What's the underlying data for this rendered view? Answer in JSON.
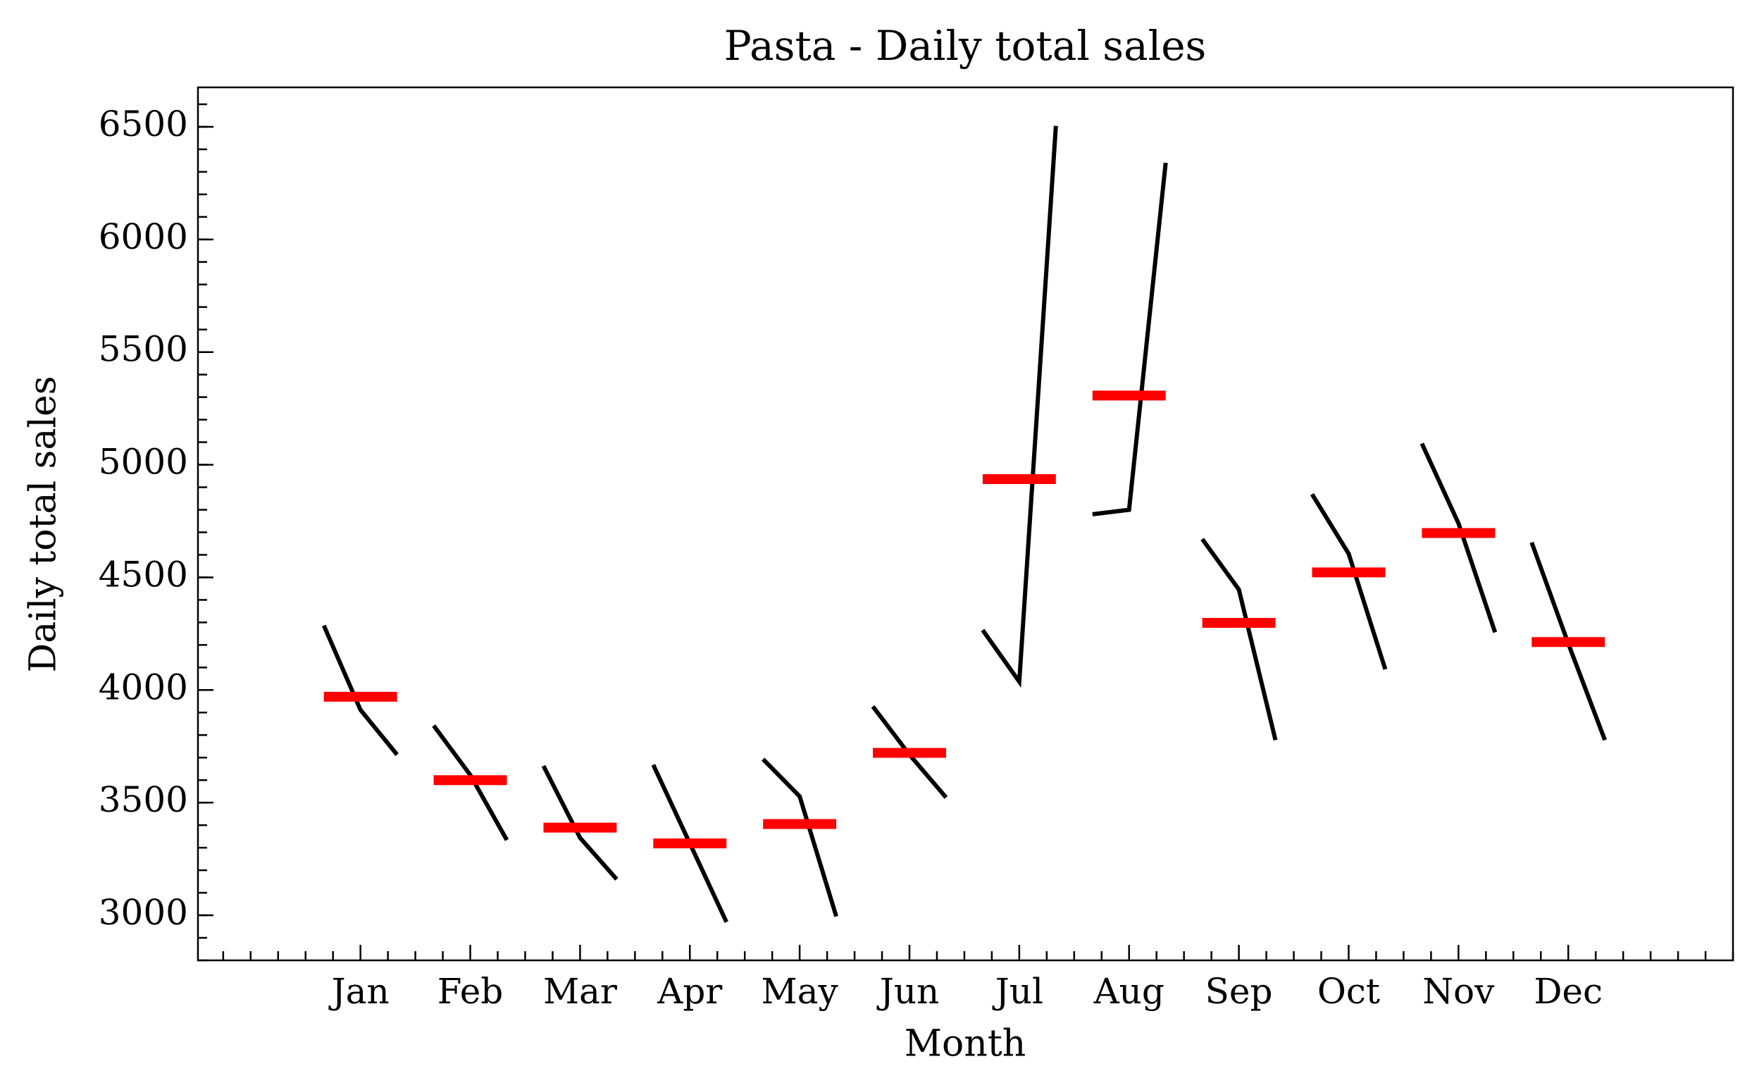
{
  "chart_data": {
    "type": "month_plot",
    "title": "Pasta - Daily total sales",
    "x_label": "Month",
    "y_label": "Daily total sales",
    "categories": [
      "Jan",
      "Feb",
      "Mar",
      "Apr",
      "May",
      "Jun",
      "Jul",
      "Aug",
      "Sep",
      "Oct",
      "Nov",
      "Dec"
    ],
    "values": [
      [
        4286,
        3912,
        3713
      ],
      [
        3842,
        3623,
        3334
      ],
      [
        3663,
        3344,
        3160
      ],
      [
        3668,
        3319,
        2970
      ],
      [
        3693,
        3528,
        2995
      ],
      [
        3927,
        3713,
        3523
      ],
      [
        4266,
        4037,
        6504
      ],
      [
        4780,
        4800,
        6340
      ],
      [
        4670,
        4446,
        3778
      ],
      [
        4869,
        4605,
        4092
      ],
      [
        5094,
        4740,
        4256
      ],
      [
        4655,
        4206,
        3778
      ]
    ],
    "means": [
      3970,
      3600,
      3389,
      3319,
      3405,
      3721,
      4936,
      5307,
      4298,
      4522,
      4697,
      4213
    ],
    "line_color": "#000000",
    "mean_color": "#ff0000",
    "xlim": [
      -1.48,
      12.5
    ],
    "ylim": [
      2800,
      6675
    ],
    "yticks": [
      3000,
      3500,
      4000,
      4500,
      5000,
      5500,
      6000,
      6500
    ]
  }
}
